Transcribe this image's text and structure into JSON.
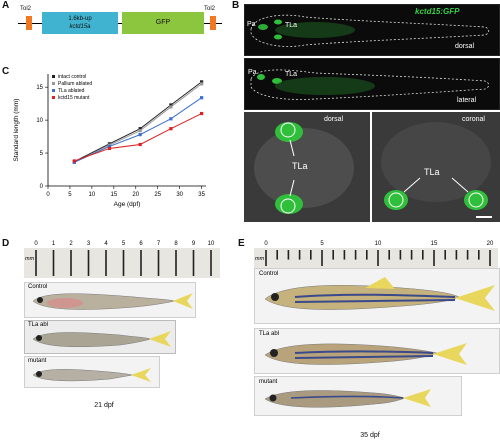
{
  "panel_letters": {
    "A": "A",
    "B": "B",
    "C": "C",
    "D": "D",
    "E": "E"
  },
  "panel_a": {
    "tol2_left": "Tol2",
    "tol2_right": "Tol2",
    "promoter_line1": "1.6kb-up",
    "promoter_line2": "kctd15a",
    "gfp": "GFP",
    "colors": {
      "tol2": "#f07820",
      "promoter": "#3fb3cf",
      "gfp": "#8cc63f"
    }
  },
  "panel_b": {
    "title": "kctd15:GFP",
    "dorsal_label": "dorsal",
    "lateral_label": "lateral",
    "dorsal_zoom_label": "dorsal",
    "coronal_label": "coronal",
    "pa_label_1": "Pa",
    "tla_label_1": "TLa",
    "pa_label_2": "Pa",
    "tla_label_2": "TLa",
    "tla_center_1": "TLa",
    "tla_center_2": "TLa"
  },
  "chart_data": {
    "type": "line",
    "xlabel": "Age (dpf)",
    "ylabel": "Standard length (mm)",
    "x": [
      6,
      14,
      21,
      28,
      35
    ],
    "xticks": [
      0,
      5,
      10,
      15,
      20,
      25,
      30,
      35
    ],
    "yticks": [
      0,
      5,
      10,
      15
    ],
    "xlim": [
      0,
      36
    ],
    "ylim": [
      0,
      17
    ],
    "legend_position": "top-left",
    "series": [
      {
        "name": "intact control",
        "color": "#222222",
        "values": [
          3.7,
          6.4,
          8.7,
          12.3,
          15.8
        ]
      },
      {
        "name": "Pallium ablated",
        "color": "#999999",
        "values": [
          3.6,
          6.2,
          8.4,
          12.0,
          15.5
        ]
      },
      {
        "name": "TLa ablated",
        "color": "#3b6fd1",
        "values": [
          3.6,
          6.0,
          7.8,
          10.2,
          13.4
        ]
      },
      {
        "name": "kctd15 mutant",
        "color": "#e02020",
        "values": [
          3.8,
          5.7,
          6.3,
          8.7,
          11.0
        ]
      }
    ]
  },
  "panel_d": {
    "ruler_unit": "mm",
    "ruler_numbers": [
      "0",
      "1",
      "2",
      "3",
      "4",
      "5",
      "6",
      "7",
      "8",
      "9",
      "10"
    ],
    "row_labels": [
      "Control",
      "TLa abl",
      "mutant"
    ],
    "caption": "21 dpf"
  },
  "panel_e": {
    "ruler_unit": "mm",
    "ruler_numbers": [
      "0",
      "5",
      "10",
      "15",
      "20"
    ],
    "row_labels": [
      "Control",
      "TLa abl",
      "mutant"
    ],
    "caption": "35 dpf"
  }
}
